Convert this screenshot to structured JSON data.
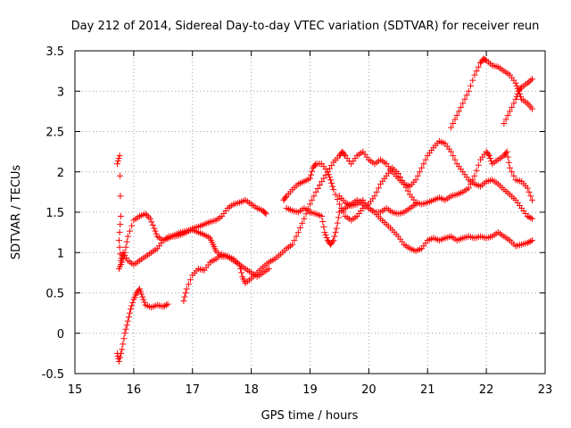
{
  "chart_data": {
    "type": "scatter",
    "title": "Day 212 of 2014, Sidereal Day-to-day VTEC variation (SDTVAR) for receiver reun",
    "xlabel": "GPS time / hours",
    "ylabel": "SDTVAR / TECUs",
    "xlim": [
      15,
      23
    ],
    "ylim": [
      -0.5,
      3.5
    ],
    "xticks": [
      15,
      16,
      17,
      18,
      19,
      20,
      21,
      22,
      23
    ],
    "yticks": [
      -0.5,
      0,
      0.5,
      1,
      1.5,
      2,
      2.5,
      3,
      3.5
    ],
    "xtick_labels": [
      "15",
      "16",
      "17",
      "18",
      "19",
      "20",
      "21",
      "22",
      "23"
    ],
    "ytick_labels": [
      "-0.5",
      "0",
      "0.5",
      "1",
      "1.5",
      "2",
      "2.5",
      "3",
      "3.5"
    ],
    "grid": true,
    "marker": "+",
    "color": "#ff0000",
    "series": [
      {
        "name": "trace-1",
        "points": [
          [
            15.72,
            2.1
          ],
          [
            15.76,
            2.2
          ],
          [
            15.78,
            1.45
          ],
          [
            15.75,
            1.15
          ],
          [
            15.78,
            0.9
          ],
          [
            15.82,
            1.0
          ],
          [
            15.9,
            0.9
          ],
          [
            16.0,
            0.85
          ],
          [
            16.1,
            0.9
          ],
          [
            16.2,
            0.95
          ],
          [
            16.3,
            1.0
          ],
          [
            16.4,
            1.05
          ],
          [
            16.5,
            1.15
          ],
          [
            16.6,
            1.2
          ],
          [
            16.7,
            1.2
          ],
          [
            16.8,
            1.22
          ],
          [
            16.9,
            1.25
          ],
          [
            17.0,
            1.3
          ],
          [
            17.1,
            1.32
          ],
          [
            17.2,
            1.35
          ],
          [
            17.3,
            1.38
          ],
          [
            17.4,
            1.4
          ],
          [
            17.5,
            1.45
          ],
          [
            17.6,
            1.55
          ],
          [
            17.7,
            1.6
          ],
          [
            17.8,
            1.62
          ],
          [
            17.9,
            1.65
          ],
          [
            18.0,
            1.6
          ],
          [
            18.1,
            1.55
          ],
          [
            18.2,
            1.52
          ],
          [
            18.25,
            1.48
          ]
        ]
      },
      {
        "name": "trace-2",
        "points": [
          [
            15.75,
            0.8
          ],
          [
            15.8,
            0.88
          ],
          [
            15.85,
            1.0
          ],
          [
            15.9,
            1.2
          ],
          [
            16.0,
            1.4
          ],
          [
            16.1,
            1.45
          ],
          [
            16.2,
            1.48
          ],
          [
            16.28,
            1.42
          ],
          [
            16.35,
            1.3
          ],
          [
            16.4,
            1.2
          ],
          [
            16.5,
            1.15
          ],
          [
            16.6,
            1.18
          ],
          [
            16.7,
            1.22
          ],
          [
            16.8,
            1.25
          ],
          [
            16.9,
            1.27
          ],
          [
            17.0,
            1.28
          ],
          [
            17.1,
            1.25
          ],
          [
            17.2,
            1.22
          ],
          [
            17.3,
            1.18
          ],
          [
            17.35,
            1.1
          ],
          [
            17.4,
            1.02
          ],
          [
            17.5,
            0.95
          ],
          [
            17.6,
            0.95
          ],
          [
            17.7,
            0.92
          ],
          [
            17.8,
            0.85
          ],
          [
            17.85,
            0.7
          ],
          [
            17.9,
            0.62
          ],
          [
            18.0,
            0.68
          ],
          [
            18.1,
            0.75
          ],
          [
            18.2,
            0.82
          ],
          [
            18.3,
            0.88
          ],
          [
            18.4,
            0.92
          ],
          [
            18.5,
            0.98
          ],
          [
            18.6,
            1.05
          ],
          [
            18.7,
            1.1
          ],
          [
            18.8,
            1.25
          ],
          [
            18.9,
            1.42
          ],
          [
            19.0,
            1.6
          ],
          [
            19.1,
            1.75
          ],
          [
            19.2,
            1.88
          ],
          [
            19.3,
            2.0
          ],
          [
            19.4,
            2.12
          ],
          [
            19.5,
            2.2
          ],
          [
            19.55,
            2.25
          ],
          [
            19.6,
            2.2
          ],
          [
            19.7,
            2.1
          ],
          [
            19.8,
            2.2
          ],
          [
            19.9,
            2.25
          ],
          [
            20.0,
            2.15
          ],
          [
            20.1,
            2.1
          ],
          [
            20.2,
            2.15
          ],
          [
            20.3,
            2.1
          ],
          [
            20.4,
            2.0
          ],
          [
            20.5,
            1.92
          ],
          [
            20.6,
            1.85
          ],
          [
            20.7,
            1.82
          ],
          [
            20.8,
            1.9
          ],
          [
            20.9,
            2.05
          ],
          [
            21.0,
            2.2
          ],
          [
            21.1,
            2.3
          ],
          [
            21.2,
            2.38
          ],
          [
            21.3,
            2.35
          ],
          [
            21.4,
            2.25
          ],
          [
            21.5,
            2.1
          ],
          [
            21.6,
            2.0
          ],
          [
            21.7,
            1.9
          ],
          [
            21.8,
            1.85
          ],
          [
            21.9,
            1.82
          ],
          [
            22.0,
            1.88
          ],
          [
            22.1,
            1.9
          ],
          [
            22.2,
            1.85
          ],
          [
            22.3,
            1.78
          ],
          [
            22.4,
            1.72
          ],
          [
            22.5,
            1.65
          ],
          [
            22.6,
            1.55
          ],
          [
            22.7,
            1.45
          ],
          [
            22.78,
            1.42
          ]
        ]
      },
      {
        "name": "trace-3",
        "points": [
          [
            15.72,
            -0.25
          ],
          [
            15.75,
            -0.35
          ],
          [
            15.8,
            -0.2
          ],
          [
            15.85,
            0.0
          ],
          [
            15.9,
            0.15
          ],
          [
            15.95,
            0.3
          ],
          [
            16.0,
            0.42
          ],
          [
            16.05,
            0.5
          ],
          [
            16.1,
            0.55
          ],
          [
            16.15,
            0.45
          ],
          [
            16.2,
            0.35
          ],
          [
            16.3,
            0.32
          ],
          [
            16.4,
            0.35
          ],
          [
            16.5,
            0.33
          ],
          [
            16.58,
            0.36
          ]
        ]
      },
      {
        "name": "trace-4",
        "points": [
          [
            16.85,
            0.4
          ],
          [
            16.9,
            0.55
          ],
          [
            17.0,
            0.72
          ],
          [
            17.1,
            0.8
          ],
          [
            17.2,
            0.78
          ],
          [
            17.3,
            0.88
          ],
          [
            17.4,
            0.92
          ],
          [
            17.5,
            0.98
          ],
          [
            17.6,
            0.95
          ],
          [
            17.7,
            0.9
          ],
          [
            17.8,
            0.85
          ],
          [
            17.9,
            0.8
          ],
          [
            18.0,
            0.75
          ],
          [
            18.1,
            0.7
          ],
          [
            18.2,
            0.75
          ],
          [
            18.3,
            0.8
          ]
        ]
      },
      {
        "name": "trace-5",
        "points": [
          [
            18.55,
            1.65
          ],
          [
            18.6,
            1.7
          ],
          [
            18.7,
            1.78
          ],
          [
            18.8,
            1.85
          ],
          [
            18.9,
            1.88
          ],
          [
            19.0,
            1.92
          ],
          [
            19.05,
            2.05
          ],
          [
            19.1,
            2.1
          ],
          [
            19.2,
            2.1
          ],
          [
            19.3,
            2.0
          ],
          [
            19.35,
            1.9
          ],
          [
            19.4,
            1.78
          ],
          [
            19.5,
            1.6
          ],
          [
            19.6,
            1.45
          ],
          [
            19.7,
            1.4
          ],
          [
            19.8,
            1.45
          ],
          [
            19.9,
            1.55
          ],
          [
            20.0,
            1.6
          ],
          [
            20.1,
            1.7
          ],
          [
            20.2,
            1.85
          ],
          [
            20.3,
            1.95
          ],
          [
            20.4,
            2.05
          ],
          [
            20.5,
            1.98
          ],
          [
            20.6,
            1.85
          ],
          [
            20.7,
            1.72
          ],
          [
            20.8,
            1.62
          ],
          [
            20.9,
            1.6
          ],
          [
            21.0,
            1.62
          ],
          [
            21.1,
            1.65
          ],
          [
            21.2,
            1.68
          ],
          [
            21.3,
            1.65
          ],
          [
            21.4,
            1.7
          ],
          [
            21.5,
            1.72
          ],
          [
            21.6,
            1.75
          ],
          [
            21.7,
            1.8
          ],
          [
            21.8,
            1.95
          ],
          [
            21.9,
            2.15
          ],
          [
            22.0,
            2.25
          ],
          [
            22.05,
            2.2
          ],
          [
            22.1,
            2.1
          ],
          [
            22.2,
            2.15
          ],
          [
            22.3,
            2.2
          ],
          [
            22.35,
            2.25
          ],
          [
            22.4,
            2.05
          ],
          [
            22.5,
            1.9
          ],
          [
            22.6,
            1.88
          ],
          [
            22.7,
            1.8
          ],
          [
            22.78,
            1.65
          ]
        ]
      },
      {
        "name": "trace-6",
        "points": [
          [
            18.6,
            1.55
          ],
          [
            18.7,
            1.52
          ],
          [
            18.8,
            1.5
          ],
          [
            18.9,
            1.55
          ],
          [
            19.0,
            1.5
          ],
          [
            19.1,
            1.48
          ],
          [
            19.2,
            1.45
          ],
          [
            19.25,
            1.25
          ],
          [
            19.3,
            1.15
          ],
          [
            19.35,
            1.1
          ],
          [
            19.4,
            1.15
          ],
          [
            19.45,
            1.3
          ],
          [
            19.5,
            1.5
          ],
          [
            19.6,
            1.55
          ],
          [
            19.7,
            1.6
          ],
          [
            19.8,
            1.65
          ],
          [
            19.9,
            1.6
          ],
          [
            20.0,
            1.55
          ],
          [
            20.1,
            1.5
          ],
          [
            20.2,
            1.42
          ],
          [
            20.3,
            1.35
          ],
          [
            20.4,
            1.28
          ],
          [
            20.5,
            1.2
          ],
          [
            20.6,
            1.1
          ],
          [
            20.7,
            1.05
          ],
          [
            20.8,
            1.02
          ],
          [
            20.9,
            1.05
          ],
          [
            21.0,
            1.15
          ],
          [
            21.1,
            1.18
          ],
          [
            21.2,
            1.15
          ],
          [
            21.3,
            1.18
          ],
          [
            21.4,
            1.2
          ],
          [
            21.5,
            1.15
          ],
          [
            21.6,
            1.18
          ],
          [
            21.7,
            1.2
          ],
          [
            21.8,
            1.18
          ],
          [
            21.9,
            1.2
          ],
          [
            22.0,
            1.18
          ],
          [
            22.1,
            1.2
          ],
          [
            22.2,
            1.25
          ],
          [
            22.3,
            1.2
          ],
          [
            22.4,
            1.15
          ],
          [
            22.5,
            1.08
          ],
          [
            22.6,
            1.1
          ],
          [
            22.7,
            1.12
          ],
          [
            22.78,
            1.15
          ]
        ]
      },
      {
        "name": "trace-7",
        "points": [
          [
            21.4,
            2.55
          ],
          [
            21.5,
            2.7
          ],
          [
            21.6,
            2.85
          ],
          [
            21.7,
            3.0
          ],
          [
            21.8,
            3.2
          ],
          [
            21.9,
            3.35
          ],
          [
            21.95,
            3.4
          ],
          [
            22.0,
            3.38
          ],
          [
            22.1,
            3.32
          ],
          [
            22.2,
            3.3
          ],
          [
            22.3,
            3.25
          ],
          [
            22.4,
            3.2
          ],
          [
            22.5,
            3.1
          ],
          [
            22.55,
            3.0
          ],
          [
            22.6,
            2.9
          ],
          [
            22.7,
            2.85
          ],
          [
            22.78,
            2.78
          ]
        ]
      },
      {
        "name": "trace-8",
        "points": [
          [
            22.3,
            2.6
          ],
          [
            22.4,
            2.75
          ],
          [
            22.5,
            2.9
          ],
          [
            22.55,
            3.0
          ],
          [
            22.6,
            3.05
          ],
          [
            22.7,
            3.1
          ],
          [
            22.78,
            3.15
          ]
        ]
      },
      {
        "name": "trace-9",
        "points": [
          [
            19.5,
            1.7
          ],
          [
            19.6,
            1.62
          ],
          [
            19.7,
            1.58
          ],
          [
            19.8,
            1.6
          ],
          [
            19.9,
            1.65
          ],
          [
            20.0,
            1.55
          ],
          [
            20.1,
            1.5
          ],
          [
            20.2,
            1.5
          ],
          [
            20.3,
            1.55
          ],
          [
            20.4,
            1.5
          ],
          [
            20.5,
            1.48
          ],
          [
            20.6,
            1.5
          ],
          [
            20.7,
            1.55
          ],
          [
            20.8,
            1.6
          ]
        ]
      }
    ]
  }
}
